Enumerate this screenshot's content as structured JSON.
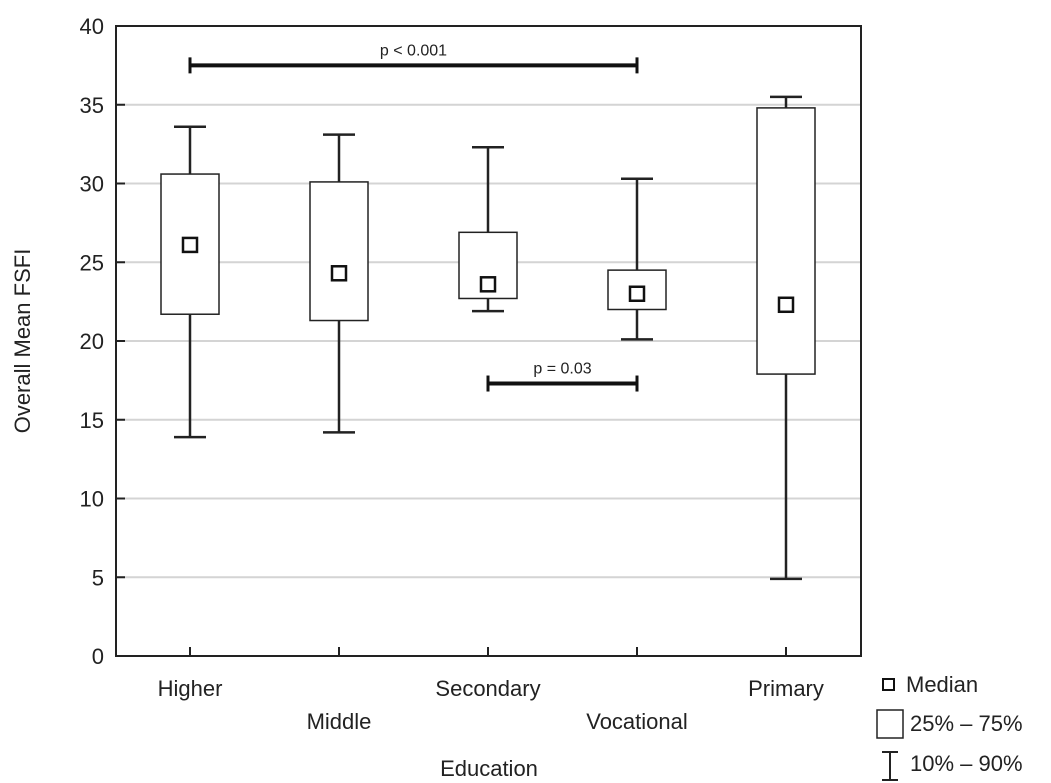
{
  "chart_data": {
    "type": "boxplot",
    "title": "",
    "xlabel": "Education",
    "ylabel": "Overall Mean FSFI",
    "ylim": [
      0,
      40
    ],
    "yticks": [
      "0",
      "5",
      "10",
      "15",
      "20",
      "25",
      "30",
      "35",
      "40"
    ],
    "grid": "horizontal",
    "categories": [
      "Higher",
      "Middle",
      "Secondary",
      "Vocational",
      "Primary"
    ],
    "boxes": [
      {
        "category": "Higher",
        "p10": 13.9,
        "q1": 21.7,
        "median": 26.1,
        "q3": 30.6,
        "p90": 33.6
      },
      {
        "category": "Middle",
        "p10": 14.2,
        "q1": 21.3,
        "median": 24.3,
        "q3": 30.1,
        "p90": 33.1
      },
      {
        "category": "Secondary",
        "p10": 21.9,
        "q1": 22.7,
        "median": 23.6,
        "q3": 26.9,
        "p90": 32.3
      },
      {
        "category": "Vocational",
        "p10": 20.1,
        "q1": 22.0,
        "median": 23.0,
        "q3": 24.5,
        "p90": 30.3
      },
      {
        "category": "Primary",
        "p10": 4.9,
        "q1": 17.9,
        "median": 22.3,
        "q3": 34.8,
        "p90": 35.5
      }
    ],
    "annotations": [
      {
        "label": "p < 0.001",
        "from": "Higher",
        "to": "Vocational",
        "y": 37.5
      },
      {
        "label": "p = 0.03",
        "from": "Secondary",
        "to": "Vocational",
        "y": 17.3
      }
    ],
    "legend": {
      "placement": "bottom-right",
      "entries": [
        {
          "symbol": "median",
          "label": "Median"
        },
        {
          "symbol": "box",
          "label": "25% – 75%"
        },
        {
          "symbol": "whisker",
          "label": "10% – 90%"
        }
      ]
    }
  }
}
